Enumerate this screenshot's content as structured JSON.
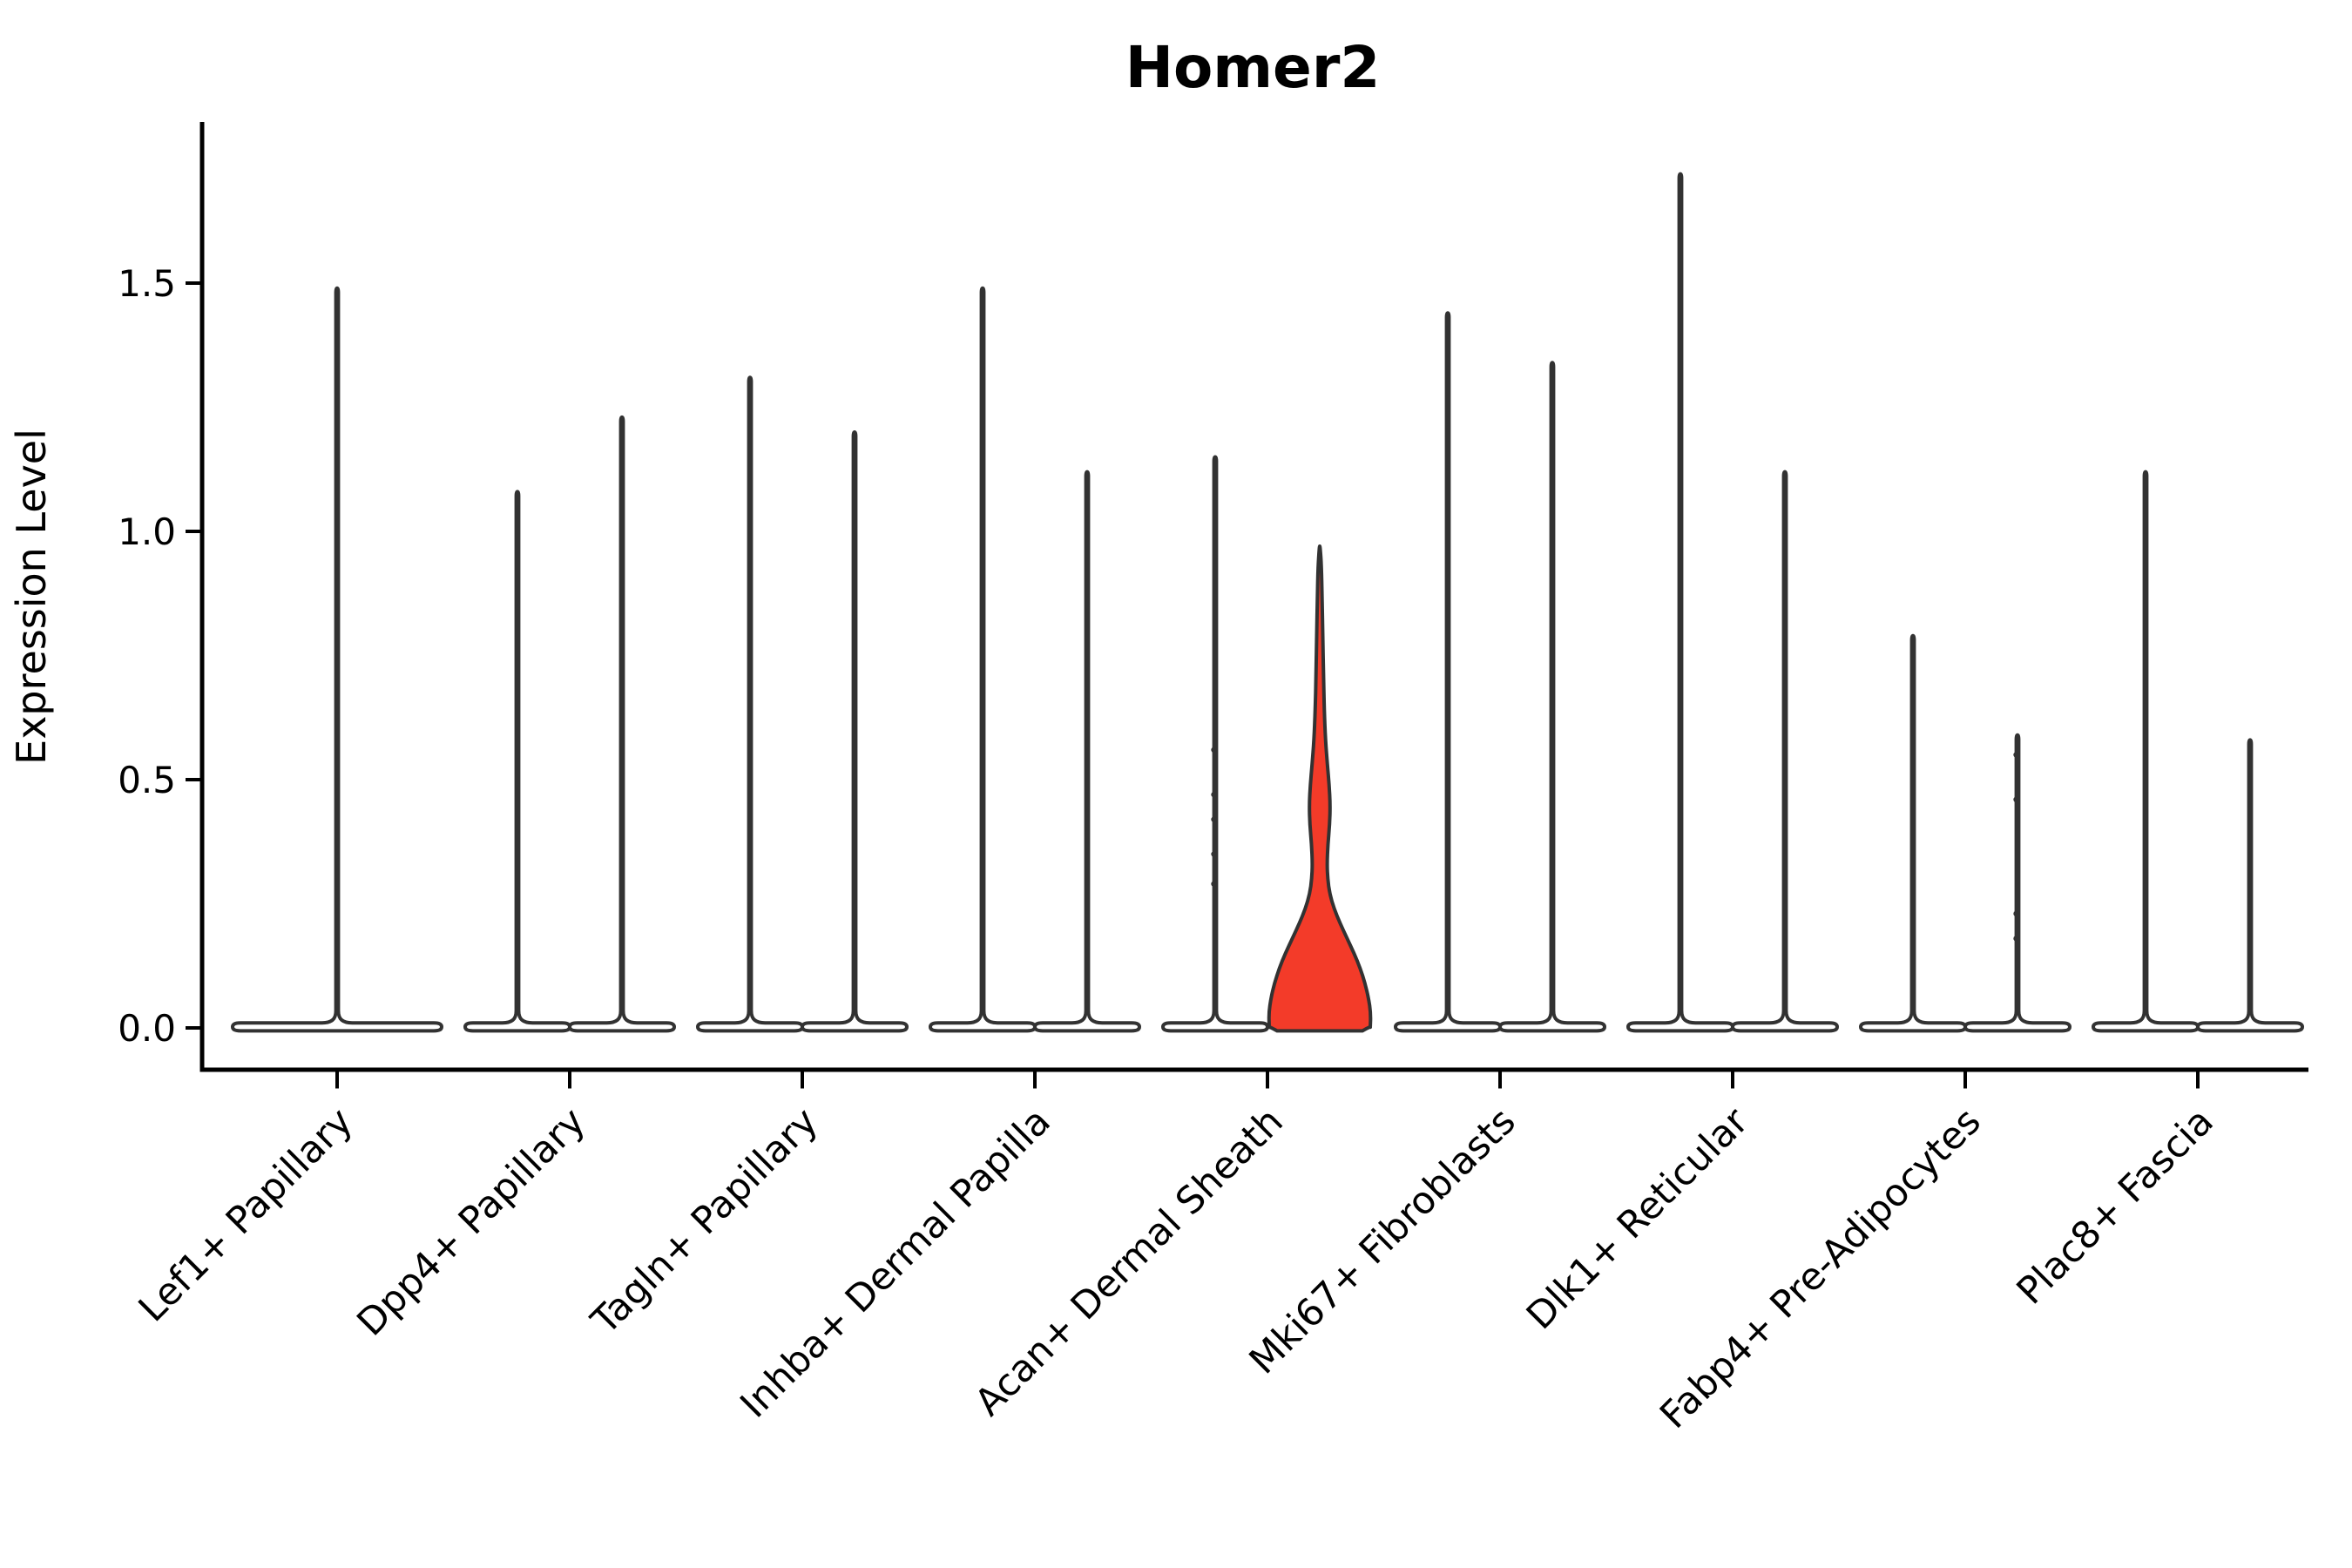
{
  "title": "Homer2",
  "axes": {
    "ylabel": "Expression Level",
    "ytick_labels": [
      "0.0",
      "0.5",
      "1.0",
      "1.5"
    ]
  },
  "colors": {
    "background": "#ffffff",
    "axis": "#000000",
    "violin_outline": "#323232",
    "violin_fill": "#ffffff",
    "highlight_fill": "#f33b29"
  },
  "chart_data": {
    "type": "violin",
    "title": "Homer2",
    "ylabel": "Expression Level",
    "yticks": [
      0,
      0.5,
      1.0,
      1.5
    ],
    "ylim": [
      -0.085,
      1.82
    ],
    "grid": false,
    "legend": null,
    "categories": [
      {
        "label": "Lef1+ Papillary",
        "violins": [
          {
            "span": "full",
            "max_expression": 1.49
          }
        ]
      },
      {
        "label": "Dpp4+ Papillary",
        "violins": [
          {
            "span": "left",
            "max_expression": 1.08
          },
          {
            "span": "right",
            "max_expression": 1.23
          }
        ]
      },
      {
        "label": "Tagln+ Papillary",
        "violins": [
          {
            "span": "left",
            "max_expression": 1.31
          },
          {
            "span": "right",
            "max_expression": 1.2
          }
        ]
      },
      {
        "label": "Inhba+ Dermal Papilla",
        "violins": [
          {
            "span": "left",
            "max_expression": 1.49
          },
          {
            "span": "right",
            "max_expression": 1.12
          }
        ]
      },
      {
        "label": "Acan+ Dermal Sheath",
        "violins": [
          {
            "span": "left",
            "max_expression": 1.15,
            "dots": [
              0.56,
              0.47,
              0.42,
              0.35,
              0.29
            ]
          },
          {
            "span": "right",
            "max_expression": 0.97,
            "highlighted": true,
            "fill": "#f33b29",
            "profile": [
              [
                0.0,
                58.0
              ],
              [
                0.03,
                58.5
              ],
              [
                0.06,
                56.0
              ],
              [
                0.09,
                52.0
              ],
              [
                0.12,
                46.5
              ],
              [
                0.15,
                39.5
              ],
              [
                0.18,
                31.5
              ],
              [
                0.21,
                23.5
              ],
              [
                0.24,
                16.5
              ],
              [
                0.27,
                11.5
              ],
              [
                0.3,
                9.2
              ],
              [
                0.33,
                8.4
              ],
              [
                0.37,
                9.4
              ],
              [
                0.41,
                11.4
              ],
              [
                0.45,
                12.0
              ],
              [
                0.49,
                10.8
              ],
              [
                0.53,
                8.8
              ],
              [
                0.58,
                6.6
              ],
              [
                0.64,
                5.2
              ],
              [
                0.71,
                4.3
              ],
              [
                0.79,
                3.5
              ],
              [
                0.87,
                2.7
              ],
              [
                0.93,
                1.9
              ],
              [
                0.965,
                0.6
              ]
            ]
          }
        ]
      },
      {
        "label": "Mki67+ Fibroblasts",
        "violins": [
          {
            "span": "left",
            "max_expression": 1.44
          },
          {
            "span": "right",
            "max_expression": 1.34
          }
        ]
      },
      {
        "label": "Dlk1+ Reticular",
        "violins": [
          {
            "span": "left",
            "max_expression": 1.72
          },
          {
            "span": "right",
            "max_expression": 1.12
          }
        ]
      },
      {
        "label": "Fabp4+ Pre-Adipocytes",
        "violins": [
          {
            "span": "left",
            "max_expression": 0.79
          },
          {
            "span": "right",
            "max_expression": 0.59,
            "dots": [
              0.55,
              0.46,
              0.23,
              0.18
            ]
          }
        ]
      },
      {
        "label": "Plac8+ Fascia",
        "violins": [
          {
            "span": "left",
            "max_expression": 1.12
          },
          {
            "span": "right",
            "max_expression": 0.58
          }
        ]
      }
    ]
  }
}
